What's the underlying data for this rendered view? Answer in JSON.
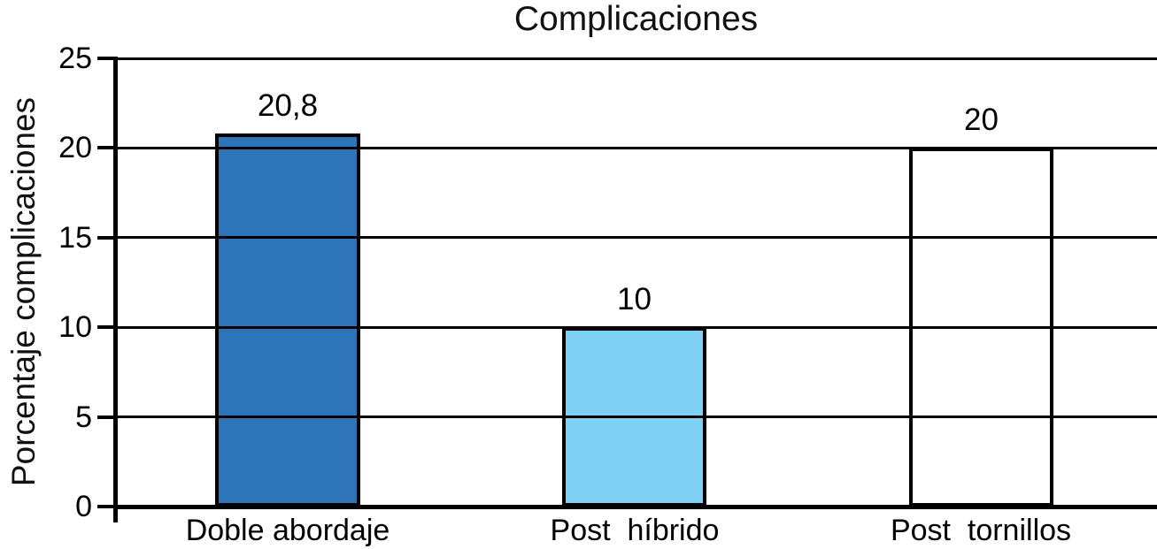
{
  "chart_data": {
    "type": "bar",
    "title": "Complicaciones",
    "ylabel": "Porcentaje complicaciones",
    "xlabel": "",
    "categories": [
      "Doble abordaje",
      "Post  híbrido",
      "Post  tornillos"
    ],
    "values": [
      20.8,
      10,
      20
    ],
    "value_labels": [
      "20,8",
      "10",
      "20"
    ],
    "bar_colors": [
      "#2E74B8",
      "#7ED1F5",
      "#FFFFFF"
    ],
    "bar_border_color": "#000000",
    "ylim": [
      0,
      25
    ],
    "yticks": [
      0,
      5,
      10,
      15,
      20,
      25
    ],
    "ytick_labels": [
      "0",
      "5",
      "10",
      "15",
      "20",
      "25"
    ],
    "grid": true,
    "grid_color": "#000000",
    "axis_color": "#000000",
    "legend": false
  }
}
